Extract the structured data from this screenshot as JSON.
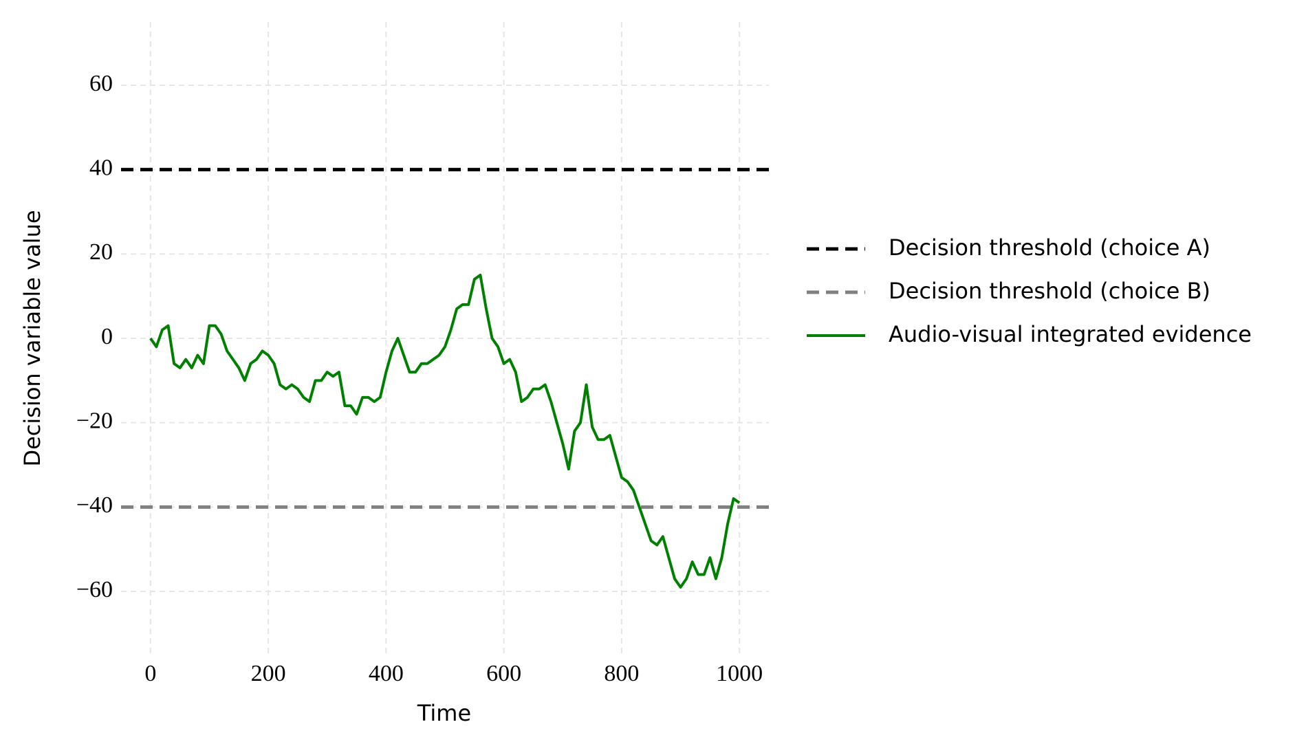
{
  "chart_data": {
    "type": "line",
    "xlabel": "Time",
    "ylabel": "Decision variable value",
    "xlim": [
      -50,
      1050
    ],
    "ylim": [
      -75,
      75
    ],
    "xticks": [
      0,
      200,
      400,
      600,
      800,
      1000
    ],
    "yticks": [
      {
        "value": -60,
        "label": "−60"
      },
      {
        "value": -40,
        "label": "−40"
      },
      {
        "value": -20,
        "label": "−20"
      },
      0,
      20,
      40,
      60
    ],
    "grid": true,
    "legend": "outside right",
    "series": [
      {
        "name": "Decision threshold (choice A)",
        "color": "#000000",
        "dash": true,
        "x": [
          -50,
          1050
        ],
        "values": [
          40,
          40
        ]
      },
      {
        "name": "Decision threshold (choice B)",
        "color": "#808080",
        "dash": true,
        "x": [
          -50,
          1050
        ],
        "values": [
          -40,
          -40
        ]
      },
      {
        "name": "Audio-visual integrated evidence",
        "color": "#008000",
        "dash": false,
        "x": [
          0,
          10,
          20,
          30,
          40,
          50,
          60,
          70,
          80,
          90,
          100,
          110,
          120,
          130,
          140,
          150,
          160,
          170,
          180,
          190,
          200,
          210,
          220,
          230,
          240,
          250,
          260,
          270,
          280,
          290,
          300,
          310,
          320,
          330,
          340,
          350,
          360,
          370,
          380,
          390,
          400,
          410,
          420,
          430,
          440,
          450,
          460,
          470,
          480,
          490,
          500,
          510,
          520,
          530,
          540,
          550,
          560,
          570,
          580,
          590,
          600,
          610,
          620,
          630,
          640,
          650,
          660,
          670,
          680,
          690,
          700,
          710,
          720,
          730,
          740,
          750,
          760,
          770,
          780,
          790,
          800,
          810,
          820,
          830,
          840,
          850,
          860,
          870,
          880,
          890,
          900,
          910,
          920,
          930,
          940,
          950,
          960,
          970,
          980,
          990,
          1000
        ],
        "values": [
          0,
          -2,
          2,
          3,
          -6,
          -7,
          -5,
          -7,
          -4,
          -6,
          3,
          3,
          1,
          -3,
          -5,
          -7,
          -10,
          -6,
          -5,
          -3,
          -4,
          -6,
          -11,
          -12,
          -11,
          -12,
          -14,
          -15,
          -10,
          -10,
          -8,
          -9,
          -8,
          -16,
          -16,
          -18,
          -14,
          -14,
          -15,
          -14,
          -8,
          -3,
          0,
          -4,
          -8,
          -8,
          -6,
          -6,
          -5,
          -4,
          -2,
          2,
          7,
          8,
          8,
          14,
          15,
          7,
          0,
          -2,
          -6,
          -5,
          -8,
          -15,
          -14,
          -12,
          -12,
          -11,
          -15,
          -20,
          -25,
          -31,
          -22,
          -20,
          -11,
          -21,
          -24,
          -24,
          -23,
          -28,
          -33,
          -34,
          -36,
          -40,
          -44,
          -48,
          -49,
          -47,
          -52,
          -57,
          -59,
          -57,
          -53,
          -56,
          -56,
          -52,
          -57,
          -52,
          -44,
          -38,
          -39
        ]
      }
    ]
  }
}
